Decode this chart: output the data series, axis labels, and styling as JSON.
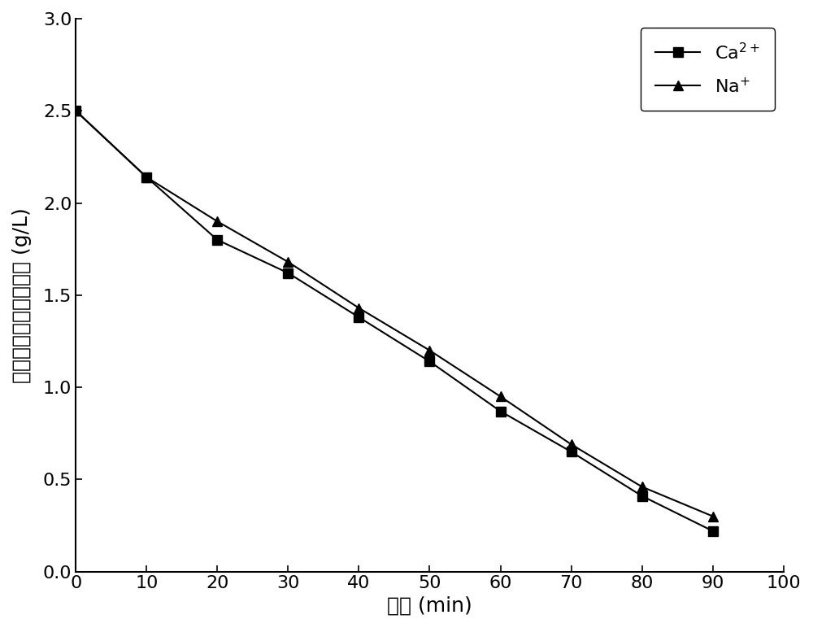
{
  "x": [
    0,
    10,
    20,
    30,
    40,
    50,
    60,
    70,
    80,
    90
  ],
  "ca_y": [
    2.5,
    2.14,
    1.8,
    1.62,
    1.38,
    1.14,
    0.87,
    0.65,
    0.41,
    0.22
  ],
  "na_y": [
    2.5,
    2.14,
    1.9,
    1.68,
    1.43,
    1.2,
    0.95,
    0.69,
    0.46,
    0.3
  ],
  "xlabel": "时间 (min)",
  "ylabel": "淡室内阳离子浓度变化 (g/L)",
  "xlim": [
    0,
    100
  ],
  "ylim": [
    0.0,
    3.0
  ],
  "xticks": [
    0,
    10,
    20,
    30,
    40,
    50,
    60,
    70,
    80,
    90,
    100
  ],
  "yticks": [
    0.0,
    0.5,
    1.0,
    1.5,
    2.0,
    2.5,
    3.0
  ],
  "line_color": "#000000",
  "marker_ca": "s",
  "marker_na": "^",
  "marker_size": 8,
  "linewidth": 1.5,
  "background_color": "#ffffff",
  "label_fontsize": 18,
  "tick_fontsize": 16,
  "legend_fontsize": 16
}
